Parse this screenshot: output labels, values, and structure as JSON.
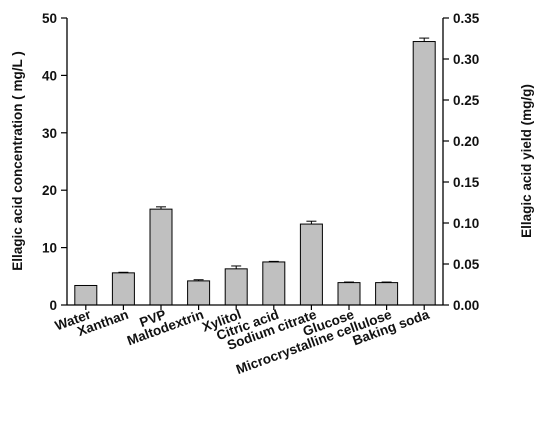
{
  "chart_data": {
    "type": "bar",
    "categories": [
      "Water",
      "Xanthan",
      "PVP",
      "Maltodextrin",
      "Xylitol",
      "Citric acid",
      "Sodium citrate",
      "Glucose",
      "Microcrystalline cellulose",
      "Baking soda"
    ],
    "values": [
      3.4,
      5.6,
      16.7,
      4.2,
      6.3,
      7.5,
      14.1,
      3.9,
      3.9,
      45.9
    ],
    "errors": [
      0.0,
      0.1,
      0.4,
      0.2,
      0.5,
      0.1,
      0.5,
      0.1,
      0.1,
      0.6
    ],
    "ylabel": "Ellagic acid concentration ( mg/L )",
    "ylim": [
      0,
      50
    ],
    "yticks": [
      "0",
      "10",
      "20",
      "30",
      "40",
      "50"
    ],
    "y2label": "Ellagic acid yield (mg/g)",
    "y2lim": [
      0,
      0.35
    ],
    "y2ticks": [
      "0.00",
      "0.05",
      "0.10",
      "0.15",
      "0.20",
      "0.25",
      "0.30",
      "0.35"
    ],
    "grid": false,
    "bar_color": "#c0c0c0"
  }
}
